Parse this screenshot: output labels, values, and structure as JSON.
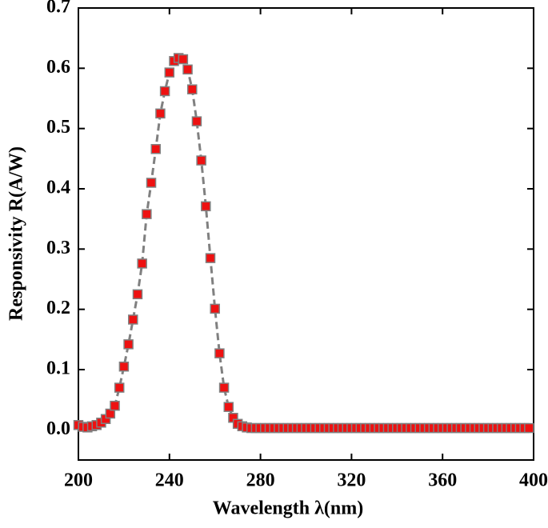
{
  "chart_data": {
    "type": "line",
    "x_label": "Wavelength λ(nm)",
    "y_label": "Responsivity R(A/W)",
    "x": [
      200,
      202,
      204,
      206,
      208,
      210,
      212,
      214,
      216,
      218,
      220,
      222,
      224,
      226,
      228,
      230,
      232,
      234,
      236,
      238,
      240,
      242,
      244,
      246,
      248,
      250,
      252,
      254,
      256,
      258,
      260,
      262,
      264,
      266,
      268,
      270,
      272,
      274,
      276,
      278,
      280,
      282,
      284,
      286,
      288,
      290,
      292,
      294,
      296,
      298,
      300,
      302,
      304,
      306,
      308,
      310,
      312,
      314,
      316,
      318,
      320,
      322,
      324,
      326,
      328,
      330,
      332,
      334,
      336,
      338,
      340,
      342,
      344,
      346,
      348,
      350,
      352,
      354,
      356,
      358,
      360,
      362,
      364,
      366,
      368,
      370,
      372,
      374,
      376,
      378,
      380,
      382,
      384,
      386,
      388,
      390,
      392,
      394,
      396,
      398
    ],
    "values": [
      0.008,
      0.005,
      0.004,
      0.006,
      0.008,
      0.012,
      0.018,
      0.027,
      0.04,
      0.07,
      0.105,
      0.142,
      0.183,
      0.225,
      0.276,
      0.358,
      0.41,
      0.466,
      0.525,
      0.562,
      0.593,
      0.612,
      0.617,
      0.615,
      0.598,
      0.565,
      0.512,
      0.447,
      0.371,
      0.285,
      0.201,
      0.127,
      0.07,
      0.038,
      0.02,
      0.01,
      0.006,
      0.004,
      0.003,
      0.003,
      0.003,
      0.003,
      0.003,
      0.003,
      0.003,
      0.003,
      0.003,
      0.003,
      0.003,
      0.003,
      0.003,
      0.003,
      0.003,
      0.003,
      0.003,
      0.003,
      0.003,
      0.003,
      0.003,
      0.003,
      0.003,
      0.003,
      0.003,
      0.003,
      0.003,
      0.003,
      0.003,
      0.003,
      0.003,
      0.003,
      0.003,
      0.003,
      0.003,
      0.003,
      0.003,
      0.003,
      0.003,
      0.003,
      0.003,
      0.003,
      0.003,
      0.003,
      0.003,
      0.003,
      0.003,
      0.003,
      0.003,
      0.003,
      0.003,
      0.003,
      0.003,
      0.003,
      0.003,
      0.003,
      0.003,
      0.003,
      0.003,
      0.003,
      0.003,
      0.003
    ],
    "color": "#ee1111",
    "line_color": "#808080",
    "xlim": [
      200,
      400
    ],
    "xticks": [
      200,
      240,
      280,
      320,
      360,
      400
    ],
    "ylim": [
      -0.05,
      0.7
    ],
    "yticks": [
      {
        "value": 0,
        "label": "0.0"
      },
      0.1,
      0.2,
      0.3,
      0.4,
      0.5,
      0.6,
      0.7
    ]
  }
}
